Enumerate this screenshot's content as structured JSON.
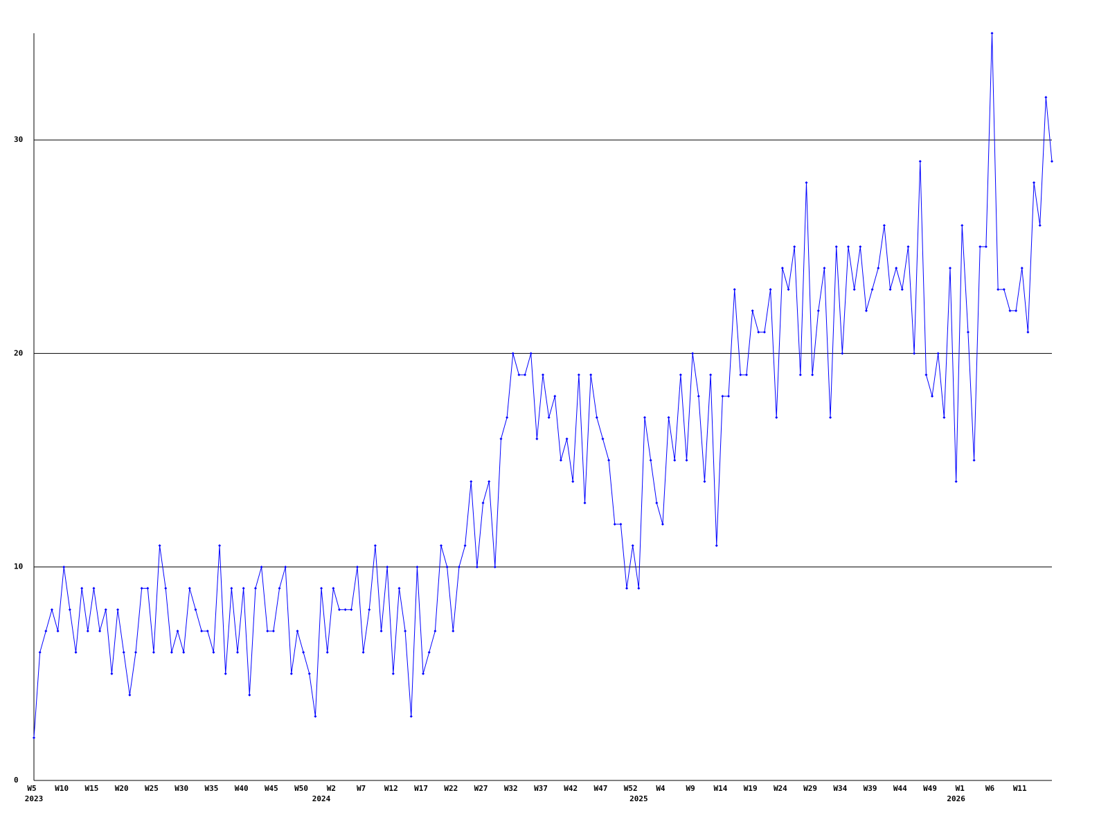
{
  "chart_data": {
    "type": "line",
    "color": "#0000ff",
    "grid": true,
    "categories": [
      "W5",
      null,
      null,
      null,
      null,
      "W10",
      null,
      null,
      null,
      null,
      "W15",
      null,
      null,
      null,
      null,
      "W20",
      null,
      null,
      null,
      null,
      "W25",
      null,
      null,
      null,
      null,
      "W30",
      null,
      null,
      null,
      null,
      "W35",
      null,
      null,
      null,
      null,
      "W40",
      null,
      null,
      null,
      null,
      "W45",
      null,
      null,
      null,
      null,
      "W50",
      null,
      null,
      null,
      null,
      "W2",
      null,
      null,
      null,
      null,
      "W7",
      null,
      null,
      null,
      null,
      "W12",
      null,
      null,
      null,
      null,
      "W17",
      null,
      null,
      null,
      null,
      "W22",
      null,
      null,
      null,
      null,
      "W27",
      null,
      null,
      null,
      null,
      "W32",
      null,
      null,
      null,
      null,
      "W37",
      null,
      null,
      null,
      null,
      "W42",
      null,
      null,
      null,
      null,
      "W47",
      null,
      null,
      null,
      null,
      "W52",
      null,
      null,
      null,
      null,
      "W4",
      null,
      null,
      null,
      null,
      "W9",
      null,
      null,
      null,
      null,
      "W14",
      null,
      null,
      null,
      null,
      "W19",
      null,
      null,
      null,
      null,
      "W24",
      null,
      null,
      null,
      null,
      "W29",
      null,
      null,
      null,
      null,
      "W34",
      null,
      null,
      null,
      null,
      "W39",
      null,
      null,
      null,
      null,
      "W44",
      null,
      null,
      null,
      null,
      "W49",
      null,
      null,
      null,
      null,
      "W1",
      null,
      null,
      null,
      null,
      "W6",
      null,
      null,
      null,
      null,
      "W11",
      null,
      null,
      null,
      null,
      null
    ],
    "values": [
      2,
      6,
      7,
      8,
      7,
      10,
      8,
      6,
      9,
      7,
      9,
      7,
      8,
      5,
      8,
      6,
      4,
      6,
      9,
      9,
      6,
      11,
      9,
      6,
      7,
      6,
      9,
      8,
      7,
      7,
      6,
      11,
      5,
      9,
      6,
      9,
      4,
      9,
      10,
      7,
      7,
      9,
      10,
      5,
      7,
      6,
      5,
      3,
      9,
      6,
      9,
      8,
      8,
      8,
      10,
      6,
      8,
      11,
      7,
      10,
      5,
      9,
      7,
      3,
      10,
      5,
      6,
      7,
      11,
      10,
      7,
      10,
      11,
      14,
      10,
      13,
      14,
      10,
      16,
      17,
      20,
      19,
      19,
      20,
      16,
      19,
      17,
      18,
      15,
      16,
      14,
      19,
      13,
      19,
      17,
      16,
      15,
      12,
      12,
      9,
      11,
      9,
      17,
      15,
      13,
      12,
      17,
      15,
      19,
      15,
      20,
      18,
      14,
      19,
      11,
      18,
      18,
      23,
      19,
      19,
      22,
      21,
      21,
      23,
      17,
      24,
      23,
      25,
      19,
      28,
      19,
      22,
      24,
      17,
      25,
      20,
      25,
      23,
      25,
      22,
      23,
      24,
      26,
      23,
      24,
      23,
      25,
      20,
      29,
      19,
      18,
      20,
      17,
      24,
      14,
      26,
      21,
      15,
      25,
      25,
      35,
      23,
      23,
      22,
      22,
      24,
      21,
      28,
      26,
      32,
      29
    ],
    "year_labels": [
      {
        "value": 0,
        "label": "2023"
      },
      {
        "value": 48,
        "label": "2024"
      },
      {
        "value": 101,
        "label": "2025"
      },
      {
        "value": 154,
        "label": "2026"
      }
    ],
    "ylim": [
      0,
      35
    ],
    "yticks": [
      0,
      10,
      20,
      30
    ]
  }
}
